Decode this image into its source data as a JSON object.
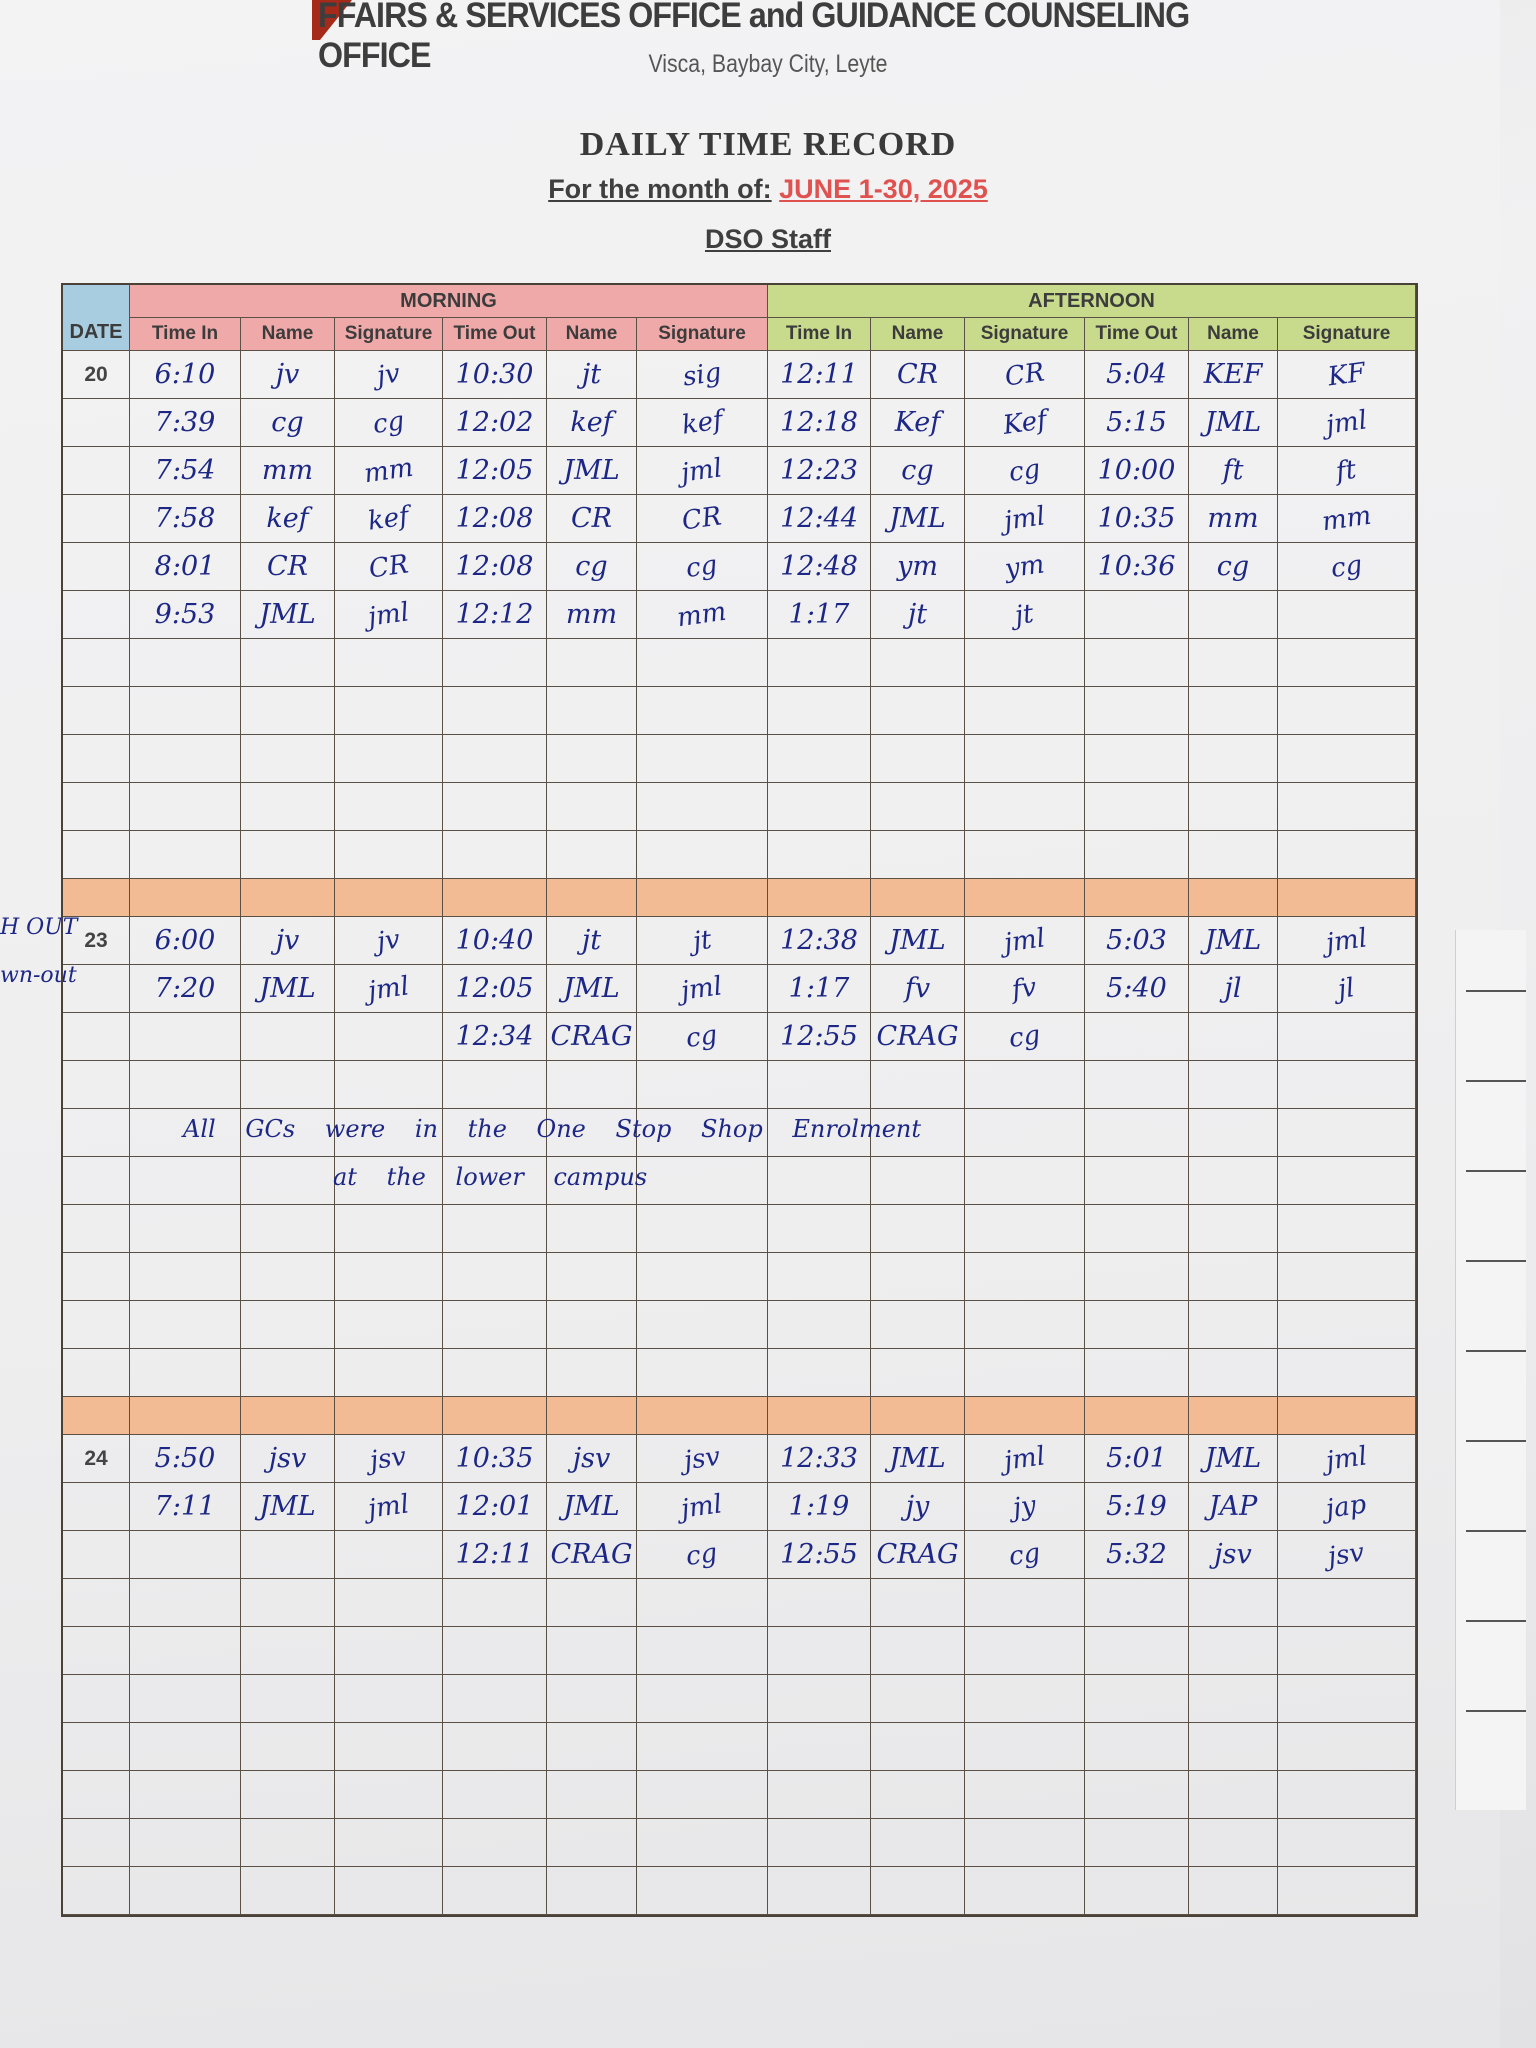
{
  "header": {
    "office": "FFAIRS & SERVICES OFFICE and GUIDANCE COUNSELING OFFICE",
    "address": "Visca, Baybay City, Leyte",
    "title": "DAILY TIME RECORD",
    "month_label": "For the month of:",
    "month_value": "JUNE 1-30, 2025",
    "staff": "DSO Staff"
  },
  "colors": {
    "date_header": "#a9cde0",
    "morning": "#f0a9a9",
    "afternoon": "#c8da8c",
    "separator": "#f3bb93",
    "ink": "#1d2785",
    "month_red": "#e0524f"
  },
  "table": {
    "date_label": "DATE",
    "morning_label": "MORNING",
    "afternoon_label": "AFTERNOON",
    "columns": [
      "Time In",
      "Name",
      "Signature",
      "Time Out",
      "Name",
      "Signature",
      "Time In",
      "Name",
      "Signature",
      "Time Out",
      "Name",
      "Signature"
    ],
    "blocks": [
      {
        "day": "20",
        "rows": [
          [
            "6:10",
            "jv",
            "jv",
            "10:30",
            "jt",
            "sig",
            "12:11",
            "CR",
            "CR",
            "5:04",
            "KEF",
            "KF"
          ],
          [
            "7:39",
            "cg",
            "cg",
            "12:02",
            "kef",
            "kef",
            "12:18",
            "Kef",
            "Kef",
            "5:15",
            "JML",
            "jml"
          ],
          [
            "7:54",
            "mm",
            "mm",
            "12:05",
            "JML",
            "jml",
            "12:23",
            "cg",
            "cg",
            "10:00",
            "ft",
            "ft"
          ],
          [
            "7:58",
            "kef",
            "kef",
            "12:08",
            "CR",
            "CR",
            "12:44",
            "JML",
            "jml",
            "10:35",
            "mm",
            "mm"
          ],
          [
            "8:01",
            "CR",
            "CR",
            "12:08",
            "cg",
            "cg",
            "12:48",
            "ym",
            "ym",
            "10:36",
            "cg",
            "cg"
          ],
          [
            "9:53",
            "JML",
            "jml",
            "12:12",
            "mm",
            "mm",
            "1:17",
            "jt",
            "jt",
            "",
            "",
            ""
          ]
        ]
      },
      {
        "day": "23",
        "rows": [
          [
            "6:00",
            "jv",
            "jv",
            "10:40",
            "jt",
            "jt",
            "12:38",
            "JML",
            "jml",
            "5:03",
            "JML",
            "jml"
          ],
          [
            "7:20",
            "JML",
            "jml",
            "12:05",
            "JML",
            "jml",
            "1:17",
            "fv",
            "fv",
            "5:40",
            "jl",
            "jl"
          ],
          [
            "",
            "",
            "",
            "12:34",
            "CRAG",
            "cg",
            "12:55",
            "CRAG",
            "cg",
            "",
            "",
            ""
          ]
        ],
        "note": [
          "All GCs were in the One Stop Shop Enrolment",
          "at the lower campus"
        ]
      },
      {
        "day": "24",
        "rows": [
          [
            "5:50",
            "jsv",
            "jsv",
            "10:35",
            "jsv",
            "jsv",
            "12:33",
            "JML",
            "jml",
            "5:01",
            "JML",
            "jml"
          ],
          [
            "7:11",
            "JML",
            "jml",
            "12:01",
            "JML",
            "jml",
            "1:19",
            "jy",
            "jy",
            "5:19",
            "JAP",
            "jap"
          ],
          [
            "",
            "",
            "",
            "12:11",
            "CRAG",
            "cg",
            "12:55",
            "CRAG",
            "cg",
            "5:32",
            "jsv",
            "jsv"
          ]
        ]
      }
    ]
  },
  "margin_notes": [
    "H OUT",
    "wn-out"
  ]
}
